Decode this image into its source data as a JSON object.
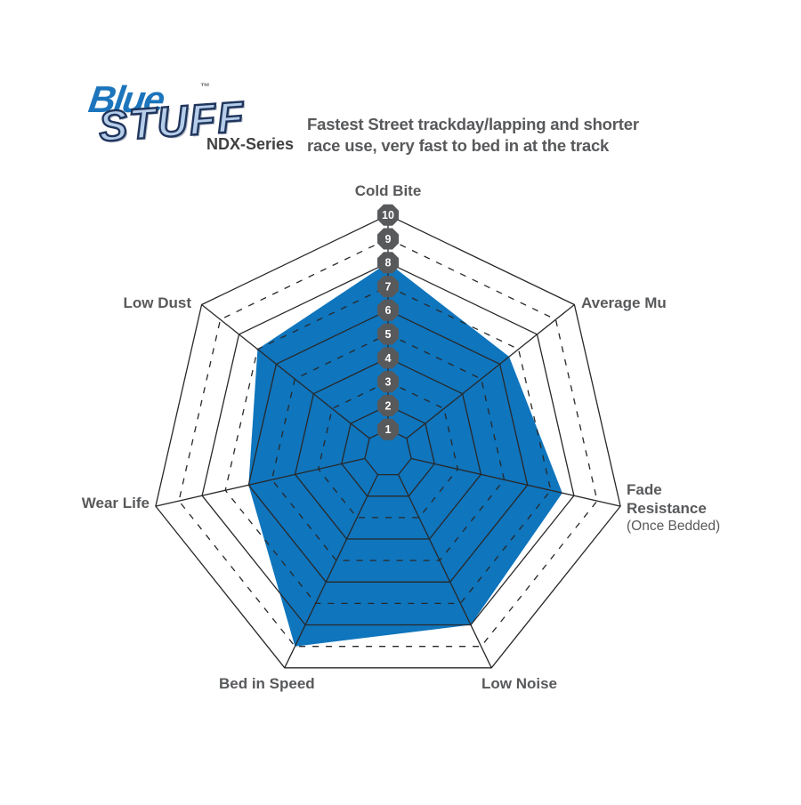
{
  "logo": {
    "blue": "Blue",
    "stuff": "STUFF",
    "tm": "™",
    "series": "NDX-Series"
  },
  "header": {
    "line1": "Fastest Street trackday/lapping and shorter",
    "line2": "race use, very fast to bed in at the track"
  },
  "chart_data": {
    "type": "radar",
    "categories": [
      "Cold Bite",
      "Average Mu",
      "Fade Resistance (Once Bedded)",
      "Low Noise",
      "Bed in Speed",
      "Wear Life",
      "Low Dust"
    ],
    "values": [
      8,
      6.5,
      7.5,
      8,
      9,
      6,
      7
    ],
    "series_name": "BlueStuff NDX-Series",
    "scale": {
      "min": 0,
      "max": 10,
      "tick_labels": [
        "1",
        "2",
        "3",
        "4",
        "5",
        "6",
        "7",
        "8",
        "9",
        "10"
      ]
    },
    "rings_solid": [
      1,
      2,
      4,
      6,
      8,
      10
    ],
    "rings_dashed": [
      3,
      5,
      7,
      9
    ],
    "grid": true,
    "legend": "none",
    "fill_color": "#0F75BC",
    "grid_color": "#28282A",
    "badge_color": "#58595B",
    "badge_text_color": "#FFFFFF",
    "label_color": "#58595B",
    "axis_display": {
      "fade_line1": "Fade",
      "fade_line2": "Resistance",
      "fade_line3": "(Once Bedded)"
    }
  }
}
